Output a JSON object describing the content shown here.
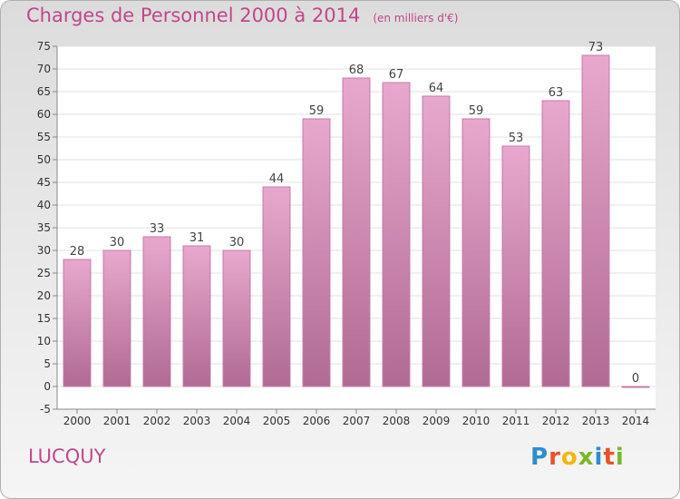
{
  "title": "Charges de Personnel 2000 à 2014",
  "unit_label": "(en milliers d'€)",
  "commune": "LUCQUY",
  "brand": {
    "letters": [
      "P",
      "r",
      "o",
      "x",
      "i",
      "t",
      "i"
    ],
    "colors": [
      "#2b8ecf",
      "#e8542a",
      "#f2b705",
      "#78b828",
      "#2b8ecf",
      "#e8542a",
      "#78b828"
    ]
  },
  "colors": {
    "accent": "#c0488a",
    "bar_top": "#e8a8cd",
    "bar_bottom": "#b06a94"
  },
  "chart_data": {
    "type": "bar",
    "title": "Charges de Personnel 2000 à 2014",
    "categories": [
      "2000",
      "2001",
      "2002",
      "2003",
      "2004",
      "2005",
      "2006",
      "2007",
      "2008",
      "2009",
      "2010",
      "2011",
      "2012",
      "2013",
      "2014"
    ],
    "values": [
      28,
      30,
      33,
      31,
      30,
      44,
      59,
      68,
      67,
      64,
      59,
      53,
      63,
      73,
      0
    ],
    "ylim": [
      -5,
      75
    ],
    "yticks": [
      -5,
      0,
      5,
      10,
      15,
      20,
      25,
      30,
      35,
      40,
      45,
      50,
      55,
      60,
      65,
      70,
      75
    ],
    "grid": true
  }
}
